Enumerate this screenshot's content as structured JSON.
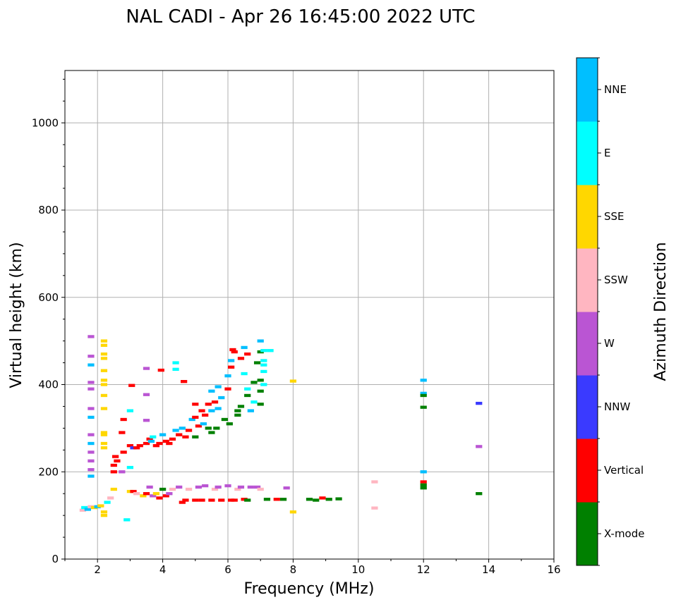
{
  "chart_data": {
    "type": "scatter",
    "title": "NAL CADI - Apr 26 16:45:00 2022 UTC",
    "xlabel": "Frequency (MHz)",
    "ylabel": "Virtual height (km)",
    "xlim": [
      1,
      16
    ],
    "ylim": [
      0,
      1120
    ],
    "xticks": [
      2,
      4,
      6,
      8,
      10,
      12,
      14,
      16
    ],
    "yticks": [
      0,
      200,
      400,
      600,
      800,
      1000
    ],
    "grid": true,
    "colorbar": {
      "label": "Azimuth Direction",
      "categories": [
        {
          "name": "X-mode",
          "color": "#008000"
        },
        {
          "name": "Vertical",
          "color": "#ff0000"
        },
        {
          "name": "NNW",
          "color": "#3a3aff"
        },
        {
          "name": "W",
          "color": "#ba55d3"
        },
        {
          "name": "SSW",
          "color": "#ffb6c1"
        },
        {
          "name": "SSE",
          "color": "#ffd700"
        },
        {
          "name": "E",
          "color": "#00ffff"
        },
        {
          "name": "NNE",
          "color": "#00bfff"
        }
      ]
    },
    "point_columns": [
      "frequency_mhz",
      "height_km",
      "category_index"
    ],
    "points": [
      [
        1.8,
        510,
        3
      ],
      [
        1.8,
        465,
        3
      ],
      [
        1.8,
        445,
        7
      ],
      [
        1.8,
        405,
        3
      ],
      [
        1.8,
        390,
        3
      ],
      [
        1.8,
        345,
        3
      ],
      [
        1.8,
        325,
        7
      ],
      [
        1.8,
        285,
        3
      ],
      [
        1.8,
        265,
        7
      ],
      [
        1.8,
        245,
        3
      ],
      [
        1.8,
        225,
        3
      ],
      [
        1.8,
        205,
        3
      ],
      [
        1.8,
        190,
        7
      ],
      [
        2.2,
        500,
        5
      ],
      [
        2.2,
        490,
        5
      ],
      [
        2.2,
        470,
        5
      ],
      [
        2.2,
        460,
        5
      ],
      [
        2.2,
        432,
        5
      ],
      [
        2.2,
        410,
        5
      ],
      [
        2.2,
        400,
        5
      ],
      [
        2.2,
        375,
        5
      ],
      [
        2.2,
        345,
        5
      ],
      [
        2.2,
        290,
        5
      ],
      [
        2.2,
        285,
        5
      ],
      [
        2.2,
        265,
        5
      ],
      [
        2.2,
        255,
        5
      ],
      [
        2.2,
        108,
        5
      ],
      [
        2.2,
        100,
        5
      ],
      [
        1.55,
        112,
        4
      ],
      [
        1.6,
        118,
        6
      ],
      [
        1.7,
        114,
        7
      ],
      [
        1.8,
        120,
        4
      ],
      [
        1.9,
        118,
        5
      ],
      [
        2.0,
        120,
        7
      ],
      [
        2.1,
        122,
        5
      ],
      [
        2.3,
        130,
        6
      ],
      [
        2.4,
        140,
        4
      ],
      [
        2.5,
        160,
        5
      ],
      [
        2.5,
        200,
        1
      ],
      [
        2.5,
        215,
        1
      ],
      [
        2.55,
        235,
        1
      ],
      [
        2.6,
        225,
        1
      ],
      [
        2.75,
        200,
        3
      ],
      [
        2.8,
        245,
        1
      ],
      [
        2.8,
        320,
        1
      ],
      [
        2.75,
        290,
        1
      ],
      [
        2.9,
        90,
        6
      ],
      [
        3.0,
        340,
        6
      ],
      [
        3.0,
        210,
        6
      ],
      [
        3.05,
        398,
        1
      ],
      [
        3.0,
        260,
        1
      ],
      [
        3.1,
        255,
        2
      ],
      [
        3.2,
        255,
        1
      ],
      [
        3.3,
        260,
        1
      ],
      [
        3.5,
        437,
        3
      ],
      [
        3.5,
        377,
        3
      ],
      [
        3.5,
        318,
        3
      ],
      [
        3.5,
        265,
        1
      ],
      [
        3.6,
        275,
        1
      ],
      [
        3.65,
        270,
        7
      ],
      [
        3.7,
        280,
        6
      ],
      [
        3.8,
        260,
        1
      ],
      [
        3.9,
        265,
        1
      ],
      [
        3.95,
        433,
        1
      ],
      [
        4.0,
        285,
        7
      ],
      [
        4.1,
        270,
        1
      ],
      [
        4.2,
        265,
        1
      ],
      [
        4.3,
        275,
        1
      ],
      [
        4.4,
        450,
        6
      ],
      [
        4.4,
        435,
        6
      ],
      [
        4.4,
        295,
        7
      ],
      [
        4.5,
        285,
        1
      ],
      [
        4.6,
        300,
        7
      ],
      [
        4.65,
        407,
        1
      ],
      [
        4.7,
        280,
        1
      ],
      [
        4.8,
        295,
        1
      ],
      [
        4.9,
        320,
        7
      ],
      [
        5.0,
        325,
        1
      ],
      [
        5.0,
        355,
        1
      ],
      [
        5.0,
        280,
        0
      ],
      [
        5.1,
        305,
        1
      ],
      [
        5.2,
        340,
        1
      ],
      [
        5.25,
        310,
        7
      ],
      [
        5.3,
        330,
        1
      ],
      [
        5.4,
        355,
        1
      ],
      [
        5.4,
        300,
        0
      ],
      [
        5.5,
        340,
        7
      ],
      [
        5.5,
        385,
        7
      ],
      [
        5.5,
        290,
        0
      ],
      [
        5.6,
        360,
        1
      ],
      [
        5.65,
        300,
        0
      ],
      [
        5.7,
        345,
        7
      ],
      [
        5.7,
        395,
        7
      ],
      [
        5.8,
        370,
        7
      ],
      [
        5.9,
        320,
        0
      ],
      [
        6.0,
        420,
        7
      ],
      [
        6.0,
        390,
        1
      ],
      [
        6.05,
        310,
        0
      ],
      [
        6.1,
        440,
        1
      ],
      [
        6.1,
        455,
        7
      ],
      [
        6.15,
        480,
        1
      ],
      [
        6.2,
        475,
        1
      ],
      [
        6.3,
        330,
        0
      ],
      [
        6.3,
        340,
        0
      ],
      [
        6.4,
        350,
        0
      ],
      [
        6.4,
        460,
        1
      ],
      [
        6.5,
        425,
        6
      ],
      [
        6.5,
        485,
        7
      ],
      [
        6.6,
        470,
        1
      ],
      [
        6.6,
        375,
        0
      ],
      [
        6.6,
        390,
        6
      ],
      [
        6.7,
        340,
        7
      ],
      [
        6.8,
        405,
        0
      ],
      [
        6.8,
        360,
        6
      ],
      [
        6.9,
        450,
        0
      ],
      [
        7.0,
        500,
        7
      ],
      [
        7.0,
        475,
        0
      ],
      [
        7.0,
        385,
        0
      ],
      [
        7.0,
        355,
        0
      ],
      [
        7.0,
        410,
        0
      ],
      [
        7.1,
        455,
        6
      ],
      [
        7.1,
        445,
        6
      ],
      [
        7.1,
        400,
        6
      ],
      [
        7.1,
        430,
        6
      ],
      [
        7.1,
        478,
        6
      ],
      [
        7.3,
        478,
        6
      ],
      [
        3.0,
        155,
        5
      ],
      [
        3.1,
        155,
        1
      ],
      [
        3.2,
        150,
        4
      ],
      [
        3.4,
        145,
        5
      ],
      [
        3.5,
        150,
        1
      ],
      [
        3.6,
        165,
        3
      ],
      [
        3.7,
        145,
        3
      ],
      [
        3.8,
        150,
        5
      ],
      [
        3.9,
        140,
        1
      ],
      [
        4.0,
        160,
        0
      ],
      [
        4.1,
        145,
        1
      ],
      [
        4.2,
        150,
        3
      ],
      [
        4.3,
        160,
        4
      ],
      [
        4.5,
        165,
        3
      ],
      [
        4.6,
        130,
        1
      ],
      [
        4.7,
        135,
        1
      ],
      [
        4.8,
        160,
        4
      ],
      [
        5.0,
        135,
        1
      ],
      [
        5.1,
        165,
        3
      ],
      [
        5.2,
        135,
        1
      ],
      [
        5.3,
        168,
        3
      ],
      [
        5.5,
        135,
        1
      ],
      [
        5.6,
        160,
        4
      ],
      [
        5.7,
        165,
        3
      ],
      [
        5.8,
        135,
        1
      ],
      [
        6.0,
        168,
        3
      ],
      [
        6.1,
        135,
        1
      ],
      [
        6.2,
        135,
        1
      ],
      [
        6.3,
        160,
        4
      ],
      [
        6.4,
        165,
        3
      ],
      [
        6.5,
        137,
        1
      ],
      [
        6.6,
        135,
        0
      ],
      [
        6.7,
        165,
        3
      ],
      [
        6.9,
        165,
        3
      ],
      [
        7.0,
        160,
        4
      ],
      [
        7.2,
        137,
        0
      ],
      [
        7.5,
        137,
        1
      ],
      [
        7.7,
        137,
        0
      ],
      [
        7.8,
        163,
        3
      ],
      [
        8.5,
        137,
        0
      ],
      [
        8.7,
        135,
        0
      ],
      [
        8.9,
        140,
        1
      ],
      [
        9.1,
        137,
        0
      ],
      [
        9.4,
        138,
        0
      ],
      [
        8.0,
        408,
        5
      ],
      [
        8.0,
        108,
        5
      ],
      [
        10.5,
        177,
        4
      ],
      [
        10.5,
        117,
        4
      ],
      [
        12.0,
        410,
        7
      ],
      [
        12.0,
        380,
        7
      ],
      [
        12.0,
        375,
        0
      ],
      [
        12.0,
        348,
        0
      ],
      [
        12.0,
        200,
        7
      ],
      [
        12.0,
        177,
        1
      ],
      [
        12.0,
        170,
        0
      ],
      [
        12.0,
        163,
        0
      ],
      [
        13.7,
        357,
        2
      ],
      [
        13.7,
        258,
        3
      ],
      [
        13.7,
        150,
        0
      ]
    ]
  }
}
